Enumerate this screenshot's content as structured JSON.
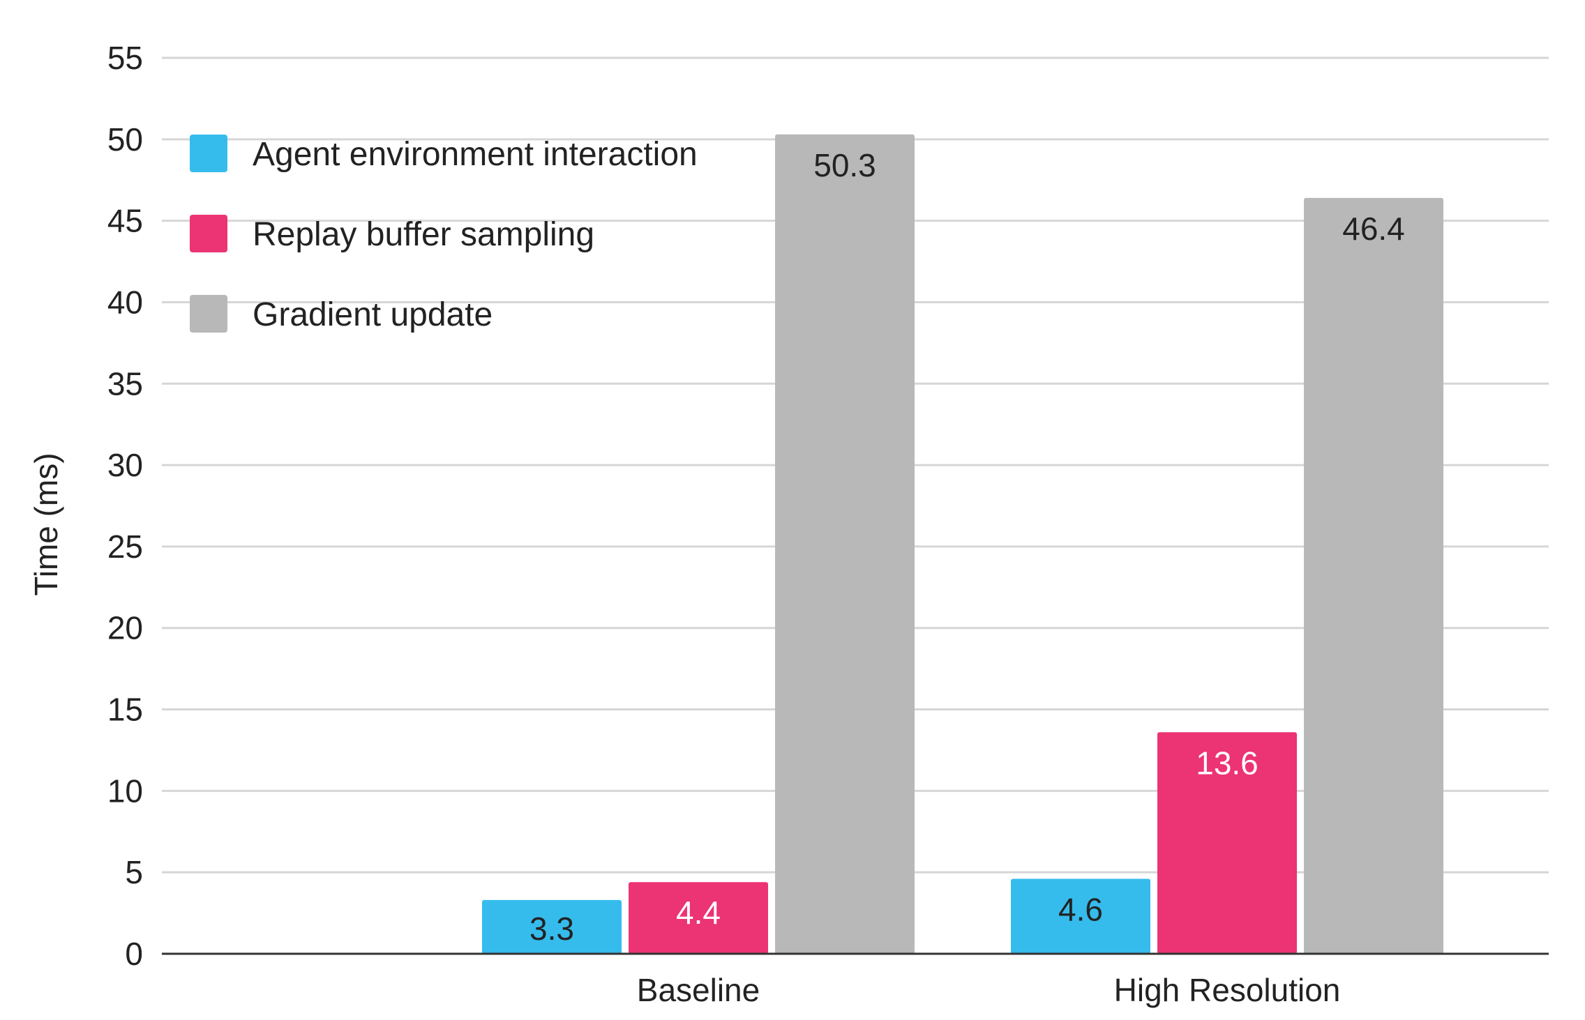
{
  "chart_data": {
    "type": "bar",
    "title": "",
    "xlabel": "",
    "ylabel": "Time (ms)",
    "ylim": [
      0,
      55
    ],
    "yticks": [
      0,
      5,
      10,
      15,
      20,
      25,
      30,
      35,
      40,
      45,
      50,
      55
    ],
    "grid": true,
    "legend_position": "top-left",
    "categories": [
      "Baseline",
      "High Resolution"
    ],
    "series": [
      {
        "name": "Agent environment interaction",
        "values": [
          3.3,
          4.6
        ],
        "color": "#35BCEC",
        "label_color": "#222222"
      },
      {
        "name": "Replay buffer sampling",
        "values": [
          4.4,
          13.6
        ],
        "color": "#EC3374",
        "label_color": "#ffffff"
      },
      {
        "name": "Gradient update",
        "values": [
          50.3,
          46.4
        ],
        "color": "#B8B8B8",
        "label_color": "#222222"
      }
    ]
  }
}
